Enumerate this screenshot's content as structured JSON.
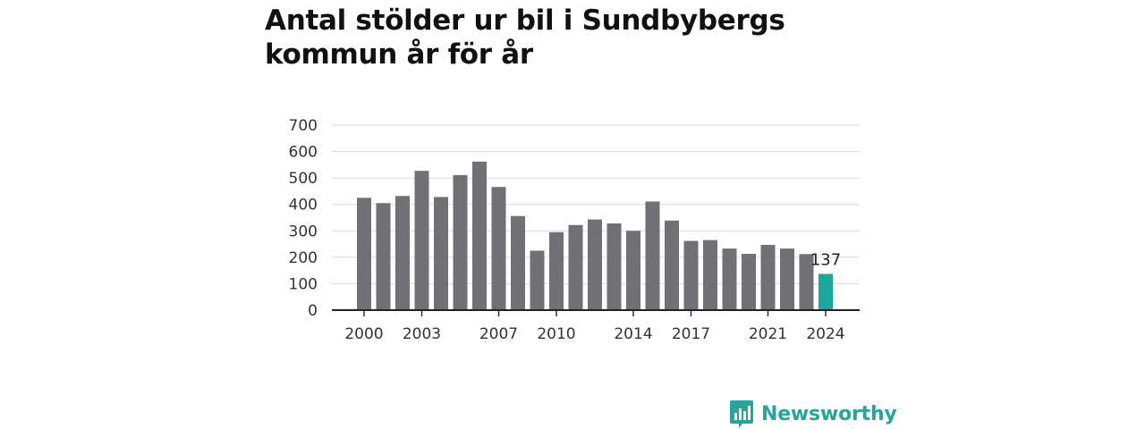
{
  "title": "Antal stölder ur bil i Sundbybergs kommun år för år",
  "brand": {
    "name": "Newsworthy",
    "icon": "bar-chart-speech-bubble-icon",
    "color": "#2aa39a"
  },
  "chart_data": {
    "type": "bar",
    "title": "Antal stölder ur bil i Sundbybergs kommun år för år",
    "xlabel": "",
    "ylabel": "",
    "ylim": [
      0,
      700
    ],
    "yticks": [
      0,
      100,
      200,
      300,
      400,
      500,
      600,
      700
    ],
    "xticks": [
      "2000",
      "2003",
      "2007",
      "2010",
      "2014",
      "2017",
      "2021",
      "2024"
    ],
    "grid": true,
    "categories": [
      "2000",
      "2001",
      "2002",
      "2003",
      "2004",
      "2005",
      "2006",
      "2007",
      "2008",
      "2009",
      "2010",
      "2011",
      "2012",
      "2013",
      "2014",
      "2015",
      "2016",
      "2017",
      "2018",
      "2019",
      "2020",
      "2021",
      "2022",
      "2023",
      "2024"
    ],
    "values": [
      425,
      405,
      432,
      527,
      428,
      511,
      562,
      466,
      356,
      225,
      295,
      322,
      343,
      328,
      300,
      411,
      339,
      262,
      265,
      233,
      213,
      247,
      233,
      212,
      137
    ],
    "bar_color": "#707075",
    "highlight_color": "#1aa89c",
    "highlight_index": 24,
    "annotation": {
      "category": "2024",
      "text": "137"
    }
  }
}
